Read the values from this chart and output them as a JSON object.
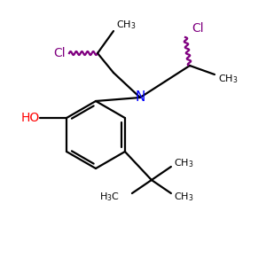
{
  "bg_color": "#ffffff",
  "atom_colors": {
    "N": "#0000ff",
    "O": "#ff0000",
    "Cl": "#800080",
    "C": "#000000",
    "H": "#000000"
  },
  "bond_color": "#000000",
  "figsize": [
    3.0,
    3.0
  ],
  "dpi": 100,
  "xlim": [
    0,
    300
  ],
  "ylim": [
    0,
    300
  ]
}
